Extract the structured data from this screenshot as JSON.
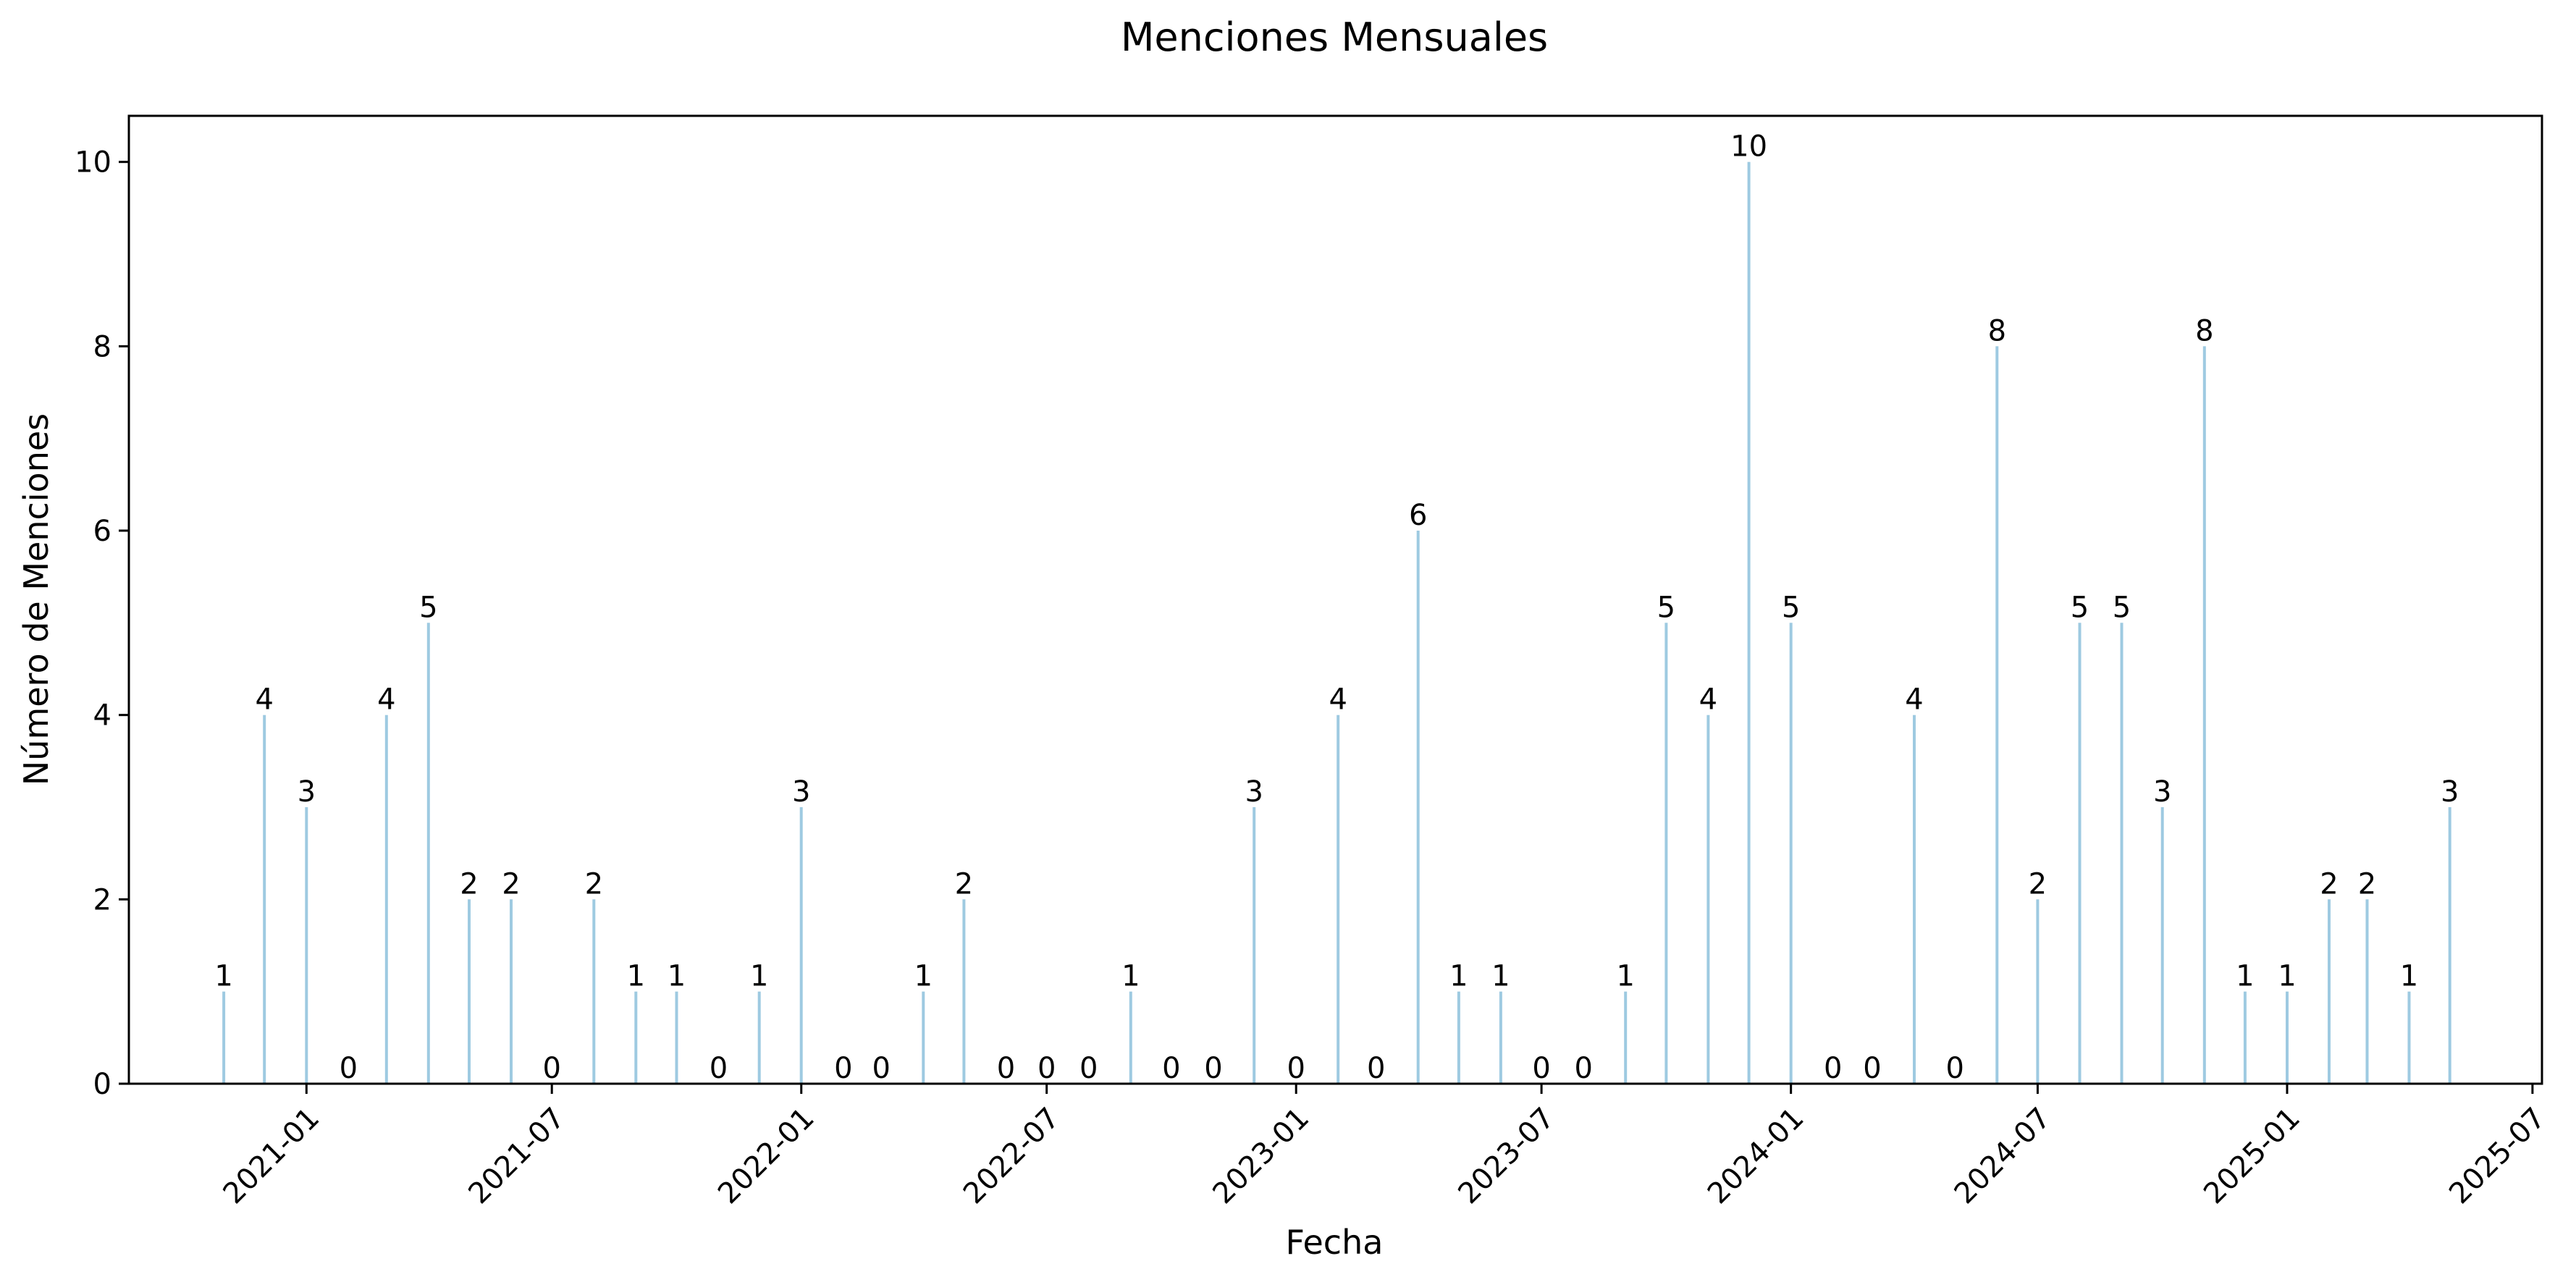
{
  "chart_data": {
    "type": "bar",
    "title": "Menciones Mensuales",
    "xlabel": "Fecha",
    "ylabel": "Número de Menciones",
    "bar_color": "#9ecae1",
    "grid": false,
    "ylim": [
      0,
      10.5
    ],
    "xlim": [
      "2020-08-23",
      "2025-07-08"
    ],
    "yticks": [
      0,
      2,
      4,
      6,
      8,
      10
    ],
    "xticks": [
      "2021-01",
      "2021-07",
      "2022-01",
      "2022-07",
      "2023-01",
      "2023-07",
      "2024-01",
      "2024-07",
      "2025-01",
      "2025-07"
    ],
    "x": [
      "2020-11",
      "2020-12",
      "2021-01",
      "2021-02",
      "2021-03",
      "2021-04",
      "2021-05",
      "2021-06",
      "2021-07",
      "2021-08",
      "2021-09",
      "2021-10",
      "2021-11",
      "2021-12",
      "2022-01",
      "2022-02",
      "2022-03",
      "2022-04",
      "2022-05",
      "2022-06",
      "2022-07",
      "2022-08",
      "2022-09",
      "2022-10",
      "2022-11",
      "2022-12",
      "2023-01",
      "2023-02",
      "2023-03",
      "2023-04",
      "2023-05",
      "2023-06",
      "2023-07",
      "2023-08",
      "2023-09",
      "2023-10",
      "2023-11",
      "2023-12",
      "2024-01",
      "2024-02",
      "2024-03",
      "2024-04",
      "2024-05",
      "2024-06",
      "2024-07",
      "2024-08",
      "2024-09",
      "2024-10",
      "2024-11",
      "2024-12",
      "2025-01",
      "2025-02",
      "2025-03",
      "2025-04",
      "2025-05"
    ],
    "values": [
      1,
      4,
      3,
      0,
      4,
      5,
      2,
      2,
      0,
      2,
      1,
      1,
      0,
      1,
      3,
      0,
      0,
      1,
      2,
      0,
      0,
      0,
      1,
      0,
      0,
      3,
      0,
      4,
      0,
      6,
      1,
      1,
      0,
      0,
      1,
      5,
      4,
      10,
      5,
      0,
      0,
      4,
      0,
      8,
      2,
      5,
      5,
      3,
      8,
      1,
      1,
      2,
      2,
      1,
      3
    ]
  }
}
